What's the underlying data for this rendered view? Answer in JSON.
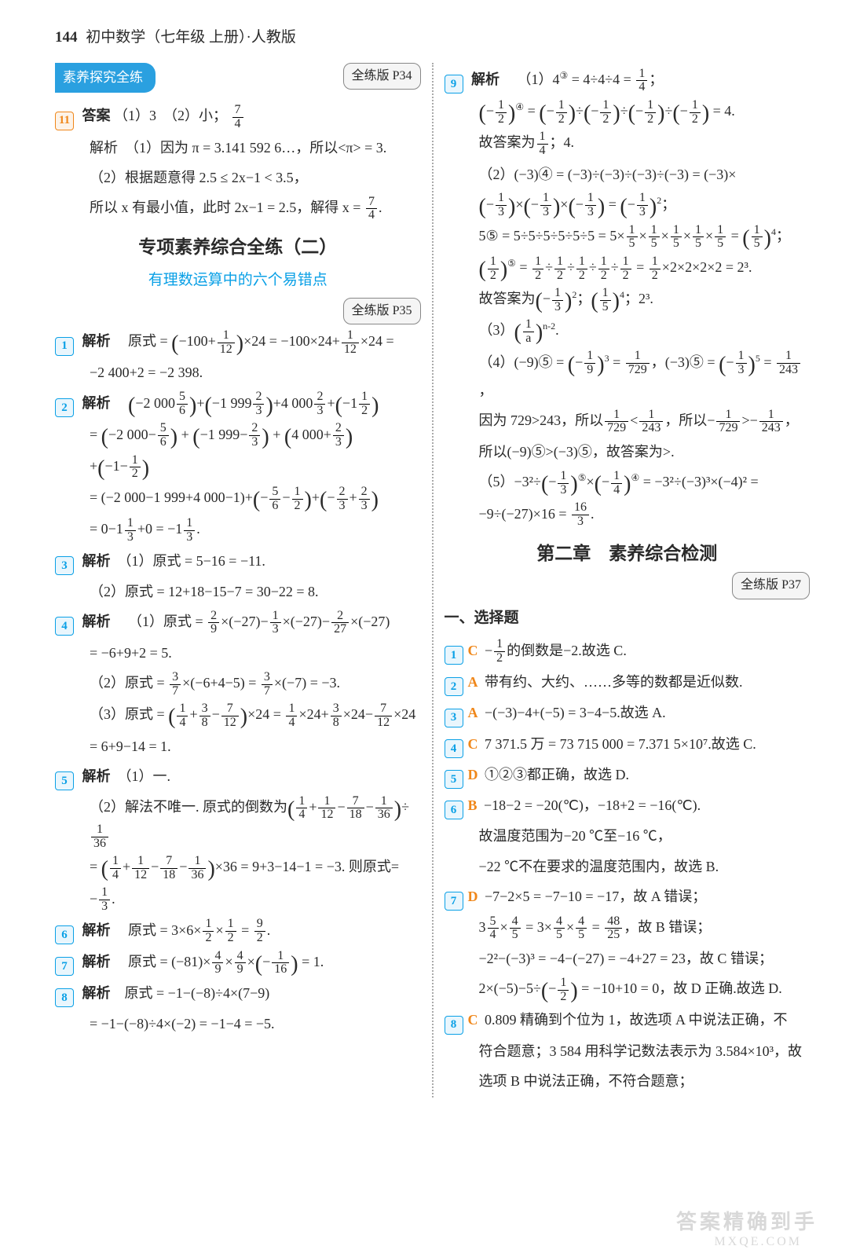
{
  "header": {
    "page_num": "144",
    "title": "初中数学（七年级 上册）·人教版"
  },
  "left": {
    "banner": "素养探究全练",
    "ref_top": "全练版 P34",
    "q11_label": "11",
    "q11_ans_prefix": "答案",
    "q11_ans_body": "（1）3　（2）小；",
    "q11_frac_n": "7",
    "q11_frac_d": "4",
    "q11_e1": "解析　（1）因为 π = 3.141 592 6…，所以<π> = 3.",
    "q11_e2": "（2）根据题意得 2.5 ≤ 2x−1 < 3.5，",
    "q11_e3a": "所以 x 有最小值，此时 2x−1 = 2.5，解得 x = ",
    "q11_e3_n": "7",
    "q11_e3_d": "4",
    "sec_title": "专项素养综合全练（二）",
    "sec_sub": "有理数运算中的六个易错点",
    "ref_mid": "全练版 P35",
    "q1": "1",
    "q2": "2",
    "q3": "3",
    "q4": "4",
    "q5": "5",
    "q6": "6",
    "q7": "7",
    "q8": "8",
    "jiexi": "解析",
    "q1_l1a": "原式 = ",
    "q1_l1b": "−100+",
    "q1_l1c": "×24 = −100×24+",
    "q1_l1d": "×24 =",
    "f1_12n": "1",
    "f1_12d": "12",
    "q1_l2": "−2 400+2 = −2 398.",
    "q2_l1a": "−2 000",
    "q2_l1b": "+",
    "q2_l1c": "−1 999",
    "q2_l1d": "+4 000",
    "q2_l1e": "+",
    "q2_l1f": "−1",
    "f56n": "5",
    "f56d": "6",
    "f23n": "2",
    "f23d": "3",
    "f12n": "1",
    "f12d": "2",
    "q2_l2a": "=",
    "q2_l2b": "−2 000−",
    "q2_l2c": " + ",
    "q2_l2d": "−1 999−",
    "q2_l2e": " + ",
    "q2_l2f": "4 000+",
    "q2_l3a": "+",
    "q2_l3b": "−1−",
    "q2_l4a": "= (−2 000−1 999+4 000−1)+",
    "q2_l4b": "−",
    "q2_l4c": "−",
    "q2_l4d": "+",
    "q2_l4e": "−",
    "q2_l4f": "+",
    "q2_l5a": "= 0−1",
    "q2_l5b": "+0 = −1",
    "q2_l5c": ".",
    "f13n": "1",
    "f13d": "3",
    "q3_l1": "（1）原式 = 5−16 = −11.",
    "q3_l2": "（2）原式 = 12+18−15−7 = 30−22 = 8.",
    "q4_l1a": "（1）原式 = ",
    "q4_l1b": "×(−27)−",
    "q4_l1c": "×(−27)−",
    "q4_l1d": "×(−27)",
    "f29n": "2",
    "f29d": "9",
    "f227n": "2",
    "f227d": "27",
    "q4_l2": "= −6+9+2 = 5.",
    "q4_l3a": "（2）原式 = ",
    "q4_l3b": "×(−6+4−5) = ",
    "q4_l3c": "×(−7) = −3.",
    "f37n": "3",
    "f37d": "7",
    "q4_l4a": "（3）原式 = ",
    "q4_l4b": "+",
    "q4_l4c": "−",
    "q4_l4d": "×24 = ",
    "q4_l4e": "×24+",
    "q4_l4f": "×24−",
    "q4_l4g": "×24",
    "f14n": "1",
    "f14d": "4",
    "f38n": "3",
    "f38d": "8",
    "f712n": "7",
    "f712d": "12",
    "q4_l5": "= 6+9−14 = 1.",
    "q5_l1": "（1）一.",
    "q5_l2a": "（2）解法不唯一. 原式的倒数为",
    "q5_l2b": "+",
    "q5_l2c": "−",
    "q5_l2d": "−",
    "q5_l2e": "÷",
    "f112n": "1",
    "f112d": "12",
    "f718n": "7",
    "f718d": "18",
    "f136n": "1",
    "f136d": "36",
    "q5_l3a": "= ",
    "q5_l3b": "+",
    "q5_l3c": "−",
    "q5_l3d": "−",
    "q5_l3e": "×36 = 9+3−14−1 = −3. 则原式=",
    "q5_l4a": "−",
    "q5_l4b": ".",
    "q6_a": "原式 = 3×6×",
    "q6_b": "×",
    "q6_c": " = ",
    "q6_d": ".",
    "f92n": "9",
    "f92d": "2",
    "q7_a": "原式 = (−81)×",
    "q7_b": "×",
    "q7_c": "×",
    "q7_d": " = 1.",
    "f49n": "4",
    "f49d": "9",
    "f-116n": "1",
    "f-116d": "16",
    "q8_l1": "原式 = −1−(−8)÷4×(7−9)",
    "q8_l2": "= −1−(−8)÷4×(−2) = −1−4 = −5."
  },
  "right": {
    "q9": "9",
    "jiexi": "解析",
    "q9_l1a": "（1）4",
    "q9_l1b": " = 4÷4÷4 = ",
    "q9_l1c": "；",
    "circ3": "③",
    "circ4": "④",
    "circ5": "⑤",
    "circn2": "n-2",
    "f14n": "1",
    "f14d": "4",
    "q9_l2a": "−",
    "q9_l2b": " = ",
    "q9_l2c": "−",
    "q9_l2d": "÷",
    "q9_l2e": "−",
    "q9_l2f": "÷",
    "q9_l2g": "−",
    "q9_l2h": "÷",
    "q9_l2i": "−",
    "q9_l2j": " = 4.",
    "f12n": "1",
    "f12d": "2",
    "q9_l3a": "故答案为",
    "q9_l3b": "；4.",
    "q9_l4": "（2）(−3)④ = (−3)÷(−3)÷(−3)÷(−3) = (−3)×",
    "q9_l5a": "−",
    "q9_l5b": "×",
    "q9_l5c": "−",
    "q9_l5d": "×",
    "q9_l5e": "−",
    "q9_l5f": " = ",
    "q9_l5g": "−",
    "q9_l5h": "；",
    "f13n": "1",
    "f13d": "3",
    "q9_l6a": "5⑤ = 5÷5÷5÷5÷5÷5 = 5×",
    "q9_l6b": "×",
    "q9_l6c": "×",
    "q9_l6d": "×",
    "q9_l6e": "×",
    "q9_l6f": " = ",
    "q9_l6g": "；",
    "f15n": "1",
    "f15d": "5",
    "q9_l7a": " = ",
    "q9_l7b": "÷",
    "q9_l7c": "÷",
    "q9_l7d": "÷",
    "q9_l7e": "÷",
    "q9_l7f": " = ",
    "q9_l7g": "×2×2×2×2 = 2³.",
    "q9_l8a": "故答案为",
    "q9_l8b": "−",
    "q9_l8c": "；",
    "q9_l8d": "；2³.",
    "q9_l9a": "（3）",
    "q9_l9b": ".",
    "f1an": "1",
    "f1ad": "a",
    "q9_l10a": "（4）(−9)⑤ = ",
    "q9_l10b": "−",
    "q9_l10c": " = ",
    "q9_l10d": "，(−3)⑤ = ",
    "q9_l10e": "−",
    "q9_l10f": " = ",
    "q9_l10g": "，",
    "f19n": "1",
    "f19d": "9",
    "f1729n": "1",
    "f1729d": "729",
    "f1243n": "1",
    "f1243d": "243",
    "q9_l11a": "因为 729>243，所以",
    "q9_l11b": "<",
    "q9_l11c": "，所以−",
    "q9_l11d": ">−",
    "q9_l11e": "，",
    "q9_l12": "所以(−9)⑤>(−3)⑤，故答案为>.",
    "q9_l13a": "（5）−3²÷",
    "q9_l13b": "−",
    "q9_l13c": "×",
    "q9_l13d": "−",
    "q9_l13e": " = −3²÷(−3)³×(−4)² =",
    "q9_l14a": "−9÷(−27)×16 = ",
    "q9_l14b": ".",
    "f163n": "16",
    "f163d": "3",
    "sec2_title": "第二章　素养综合检测",
    "ref": "全练版 P37",
    "sec2_h": "一、选择题",
    "r1": "1",
    "r2": "2",
    "r3": "3",
    "r4": "4",
    "r5": "5",
    "r6": "6",
    "r7": "7",
    "r8": "8",
    "lC": "C",
    "lA": "A",
    "lD": "D",
    "lB": "B",
    "r1_a": "−",
    "r1_b": "的倒数是−2.故选 C.",
    "r2_t": "带有约、大约、……多等的数都是近似数.",
    "r3_t": "−(−3)−4+(−5) = 3−4−5.故选 A.",
    "r4_t": "7 371.5 万 = 73 715 000 = 7.371 5×10⁷.故选 C.",
    "r5_t": "①②③都正确，故选 D.",
    "r6_l1": "−18−2 = −20(℃)，−18+2 = −16(℃).",
    "r6_l2": "故温度范围为−20 ℃至−16 ℃，",
    "r6_l3": "−22 ℃不在要求的温度范围内，故选 B.",
    "r7_l1": "−7−2×5 = −7−10 = −17，故 A 错误；",
    "r7_l2a": "3",
    "r7_l2b": "×",
    "r7_l2c": " = 3×",
    "r7_l2d": "×",
    "r7_l2e": " = ",
    "r7_l2f": "，故 B 错误；",
    "f45n": "4",
    "f45d": "5",
    "f54n": "5",
    "f54d": "4",
    "f4825n": "48",
    "f4825d": "25",
    "r7_l3": "−2²−(−3)³ = −4−(−27) = −4+27 = 23，故 C 错误；",
    "r7_l4a": "2×(−5)−5÷",
    "r7_l4b": "−",
    "r7_l4c": " = −10+10 = 0，故 D 正确.故选 D.",
    "r8_l1": "0.809 精确到个位为 1，故选项 A 中说法正确，不",
    "r8_l2": "符合题意；3 584 用科学记数法表示为 3.584×10³，故",
    "r8_l3": "选项 B 中说法正确，不符合题意；"
  },
  "watermark": "答案精确到手",
  "wm2": "MXQE.COM"
}
